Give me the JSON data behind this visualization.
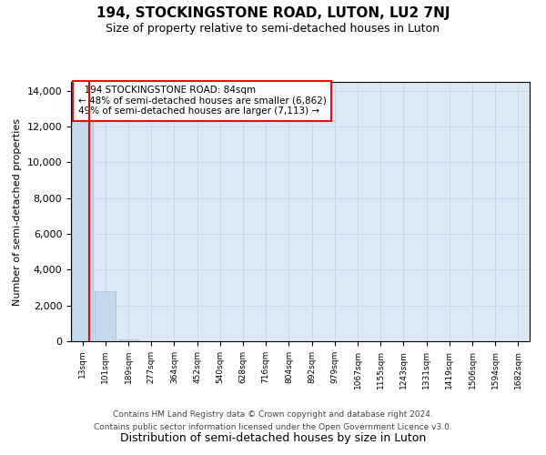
{
  "title": "194, STOCKINGSTONE ROAD, LUTON, LU2 7NJ",
  "subtitle": "Size of property relative to semi-detached houses in Luton",
  "xlabel": "Distribution of semi-detached houses by size in Luton",
  "ylabel": "Number of semi-detached properties",
  "footer1": "Contains HM Land Registry data © Crown copyright and database right 2024.",
  "footer2": "Contains public sector information licensed under the Open Government Licence v3.0.",
  "annotation_line1": "194 STOCKINGSTONE ROAD: 84sqm",
  "annotation_line2": "← 48% of semi-detached houses are smaller (6,862)",
  "annotation_line3": "49% of semi-detached houses are larger (7,113) →",
  "bar_color": "#c5d8ed",
  "bar_edge_color": "#a0bcd8",
  "grid_color": "#c8d8e8",
  "background_color": "#dce8f5",
  "property_size": 84,
  "ylim": [
    0,
    14500
  ],
  "ytick_values": [
    0,
    2000,
    4000,
    6000,
    8000,
    10000,
    12000,
    14000
  ],
  "bin_labels": [
    "13sqm",
    "101sqm",
    "189sqm",
    "277sqm",
    "364sqm",
    "452sqm",
    "540sqm",
    "628sqm",
    "716sqm",
    "804sqm",
    "892sqm",
    "979sqm",
    "1067sqm",
    "1155sqm",
    "1243sqm",
    "1331sqm",
    "1419sqm",
    "1506sqm",
    "1594sqm",
    "1682sqm"
  ],
  "bin_edges": [
    13,
    101,
    189,
    277,
    364,
    452,
    540,
    628,
    716,
    804,
    892,
    979,
    1067,
    1155,
    1243,
    1331,
    1419,
    1506,
    1594,
    1682,
    1770
  ],
  "bar_heights": [
    13500,
    2800,
    120,
    5,
    2,
    1,
    0,
    0,
    0,
    0,
    0,
    0,
    0,
    0,
    0,
    0,
    0,
    0,
    0,
    0
  ]
}
